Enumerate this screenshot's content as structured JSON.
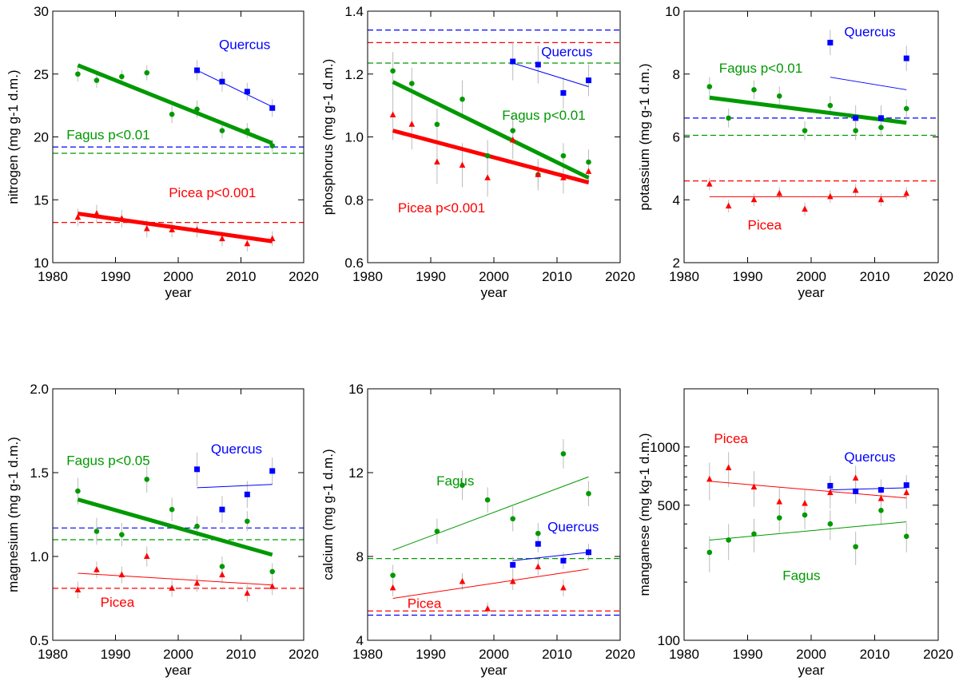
{
  "colors": {
    "picea": "#ff0000",
    "fagus": "#009900",
    "quercus": "#0000ff",
    "errorbar": "#bbbbbb",
    "axis": "#000000"
  },
  "chart_data": [
    {
      "type": "scatter",
      "ylabel": "nitrogen (mg g-1 d.m.)",
      "xlabel": "year",
      "xlim": [
        1980,
        2020
      ],
      "ylim": [
        10,
        30
      ],
      "scale": "linear",
      "xticks": [
        1980,
        1990,
        2000,
        2010,
        2020
      ],
      "yticks": [
        10,
        15,
        20,
        25,
        30
      ],
      "ytick_labels": [
        "10",
        "15",
        "20",
        "25",
        "30"
      ],
      "series": [
        {
          "name": "Fagus",
          "color": "#009900",
          "marker": "circle",
          "x": [
            1984,
            1987,
            1991,
            1995,
            1999,
            2003,
            2007,
            2011,
            2015
          ],
          "y": [
            25.0,
            24.5,
            24.8,
            25.1,
            21.8,
            22.2,
            20.5,
            20.5,
            19.3
          ],
          "err": [
            0.6,
            0.6,
            0.5,
            0.6,
            0.7,
            0.7,
            0.6,
            0.6,
            0.5
          ],
          "trend": [
            25.7,
            19.5
          ],
          "trend_width": 5,
          "mean": 18.7
        },
        {
          "name": "Picea",
          "color": "#ff0000",
          "marker": "triangle",
          "x": [
            1984,
            1987,
            1991,
            1995,
            1999,
            2003,
            2007,
            2011,
            2015
          ],
          "y": [
            13.6,
            13.9,
            13.5,
            12.7,
            12.6,
            12.6,
            11.9,
            11.5,
            11.9
          ],
          "err": [
            0.7,
            0.7,
            0.7,
            0.7,
            0.6,
            0.6,
            0.6,
            0.6,
            0.6
          ],
          "trend": [
            13.9,
            11.7
          ],
          "trend_width": 5,
          "mean": 13.2
        },
        {
          "name": "Quercus",
          "color": "#0000ff",
          "marker": "square",
          "x": [
            2003,
            2007,
            2011,
            2015
          ],
          "y": [
            25.3,
            24.4,
            23.6,
            22.3
          ],
          "err": [
            0.8,
            0.8,
            0.7,
            0.7
          ],
          "trend": [
            25.3,
            22.4
          ],
          "trend_width": 1,
          "mean": 19.2
        }
      ],
      "annotations": [
        {
          "text": "Quercus",
          "color": "#0000ff",
          "x": 2006.5,
          "y": 27.0,
          "size": 17
        },
        {
          "text": "Fagus p<0.01",
          "color": "#009900",
          "x": 1982.2,
          "y": 19.8,
          "size": 17
        },
        {
          "text": "Picea p<0.001",
          "color": "#ff0000",
          "x": 1998.5,
          "y": 15.2,
          "size": 17
        }
      ]
    },
    {
      "type": "scatter",
      "ylabel": "phosphorus (mg g-1 d.m.)",
      "xlabel": "year",
      "xlim": [
        1980,
        2020
      ],
      "ylim": [
        0.6,
        1.4
      ],
      "scale": "linear",
      "xticks": [
        1980,
        1990,
        2000,
        2010,
        2020
      ],
      "yticks": [
        0.6,
        0.8,
        1.0,
        1.2,
        1.4
      ],
      "ytick_labels": [
        "0.6",
        "0.8",
        "1.0",
        "1.2",
        "1.4"
      ],
      "series": [
        {
          "name": "Fagus",
          "color": "#009900",
          "marker": "circle",
          "x": [
            1984,
            1987,
            1991,
            1995,
            1999,
            2003,
            2007,
            2011,
            2015
          ],
          "y": [
            1.21,
            1.17,
            1.04,
            1.12,
            0.94,
            1.02,
            0.88,
            0.94,
            0.92
          ],
          "err": [
            0.06,
            0.05,
            0.05,
            0.06,
            0.05,
            0.05,
            0.04,
            0.04,
            0.04
          ],
          "trend": [
            1.175,
            0.87
          ],
          "trend_width": 5,
          "mean": 1.235
        },
        {
          "name": "Picea",
          "color": "#ff0000",
          "marker": "triangle",
          "x": [
            1984,
            1987,
            1991,
            1995,
            1999,
            2003,
            2007,
            2011,
            2015
          ],
          "y": [
            1.07,
            1.04,
            0.92,
            0.91,
            0.87,
            0.99,
            0.88,
            0.87,
            0.89
          ],
          "err": [
            0.08,
            0.08,
            0.07,
            0.07,
            0.06,
            0.06,
            0.05,
            0.05,
            0.04
          ],
          "trend": [
            1.02,
            0.855
          ],
          "trend_width": 5,
          "mean": 1.3
        },
        {
          "name": "Quercus",
          "color": "#0000ff",
          "marker": "square",
          "x": [
            2003,
            2007,
            2011,
            2015
          ],
          "y": [
            1.24,
            1.23,
            1.14,
            1.18
          ],
          "err": [
            0.06,
            0.06,
            0.05,
            0.05
          ],
          "trend": [
            1.235,
            1.16
          ],
          "trend_width": 1,
          "mean": 1.34
        }
      ],
      "annotations": [
        {
          "text": "Quercus",
          "color": "#0000ff",
          "x": 2007.5,
          "y": 1.256,
          "size": 17
        },
        {
          "text": "Fagus p<0.01",
          "color": "#009900",
          "x": 2001.3,
          "y": 1.055,
          "size": 17
        },
        {
          "text": "Picea p<0.001",
          "color": "#ff0000",
          "x": 1984.8,
          "y": 0.76,
          "size": 17
        }
      ]
    },
    {
      "type": "scatter",
      "ylabel": "potassium (mg g-1 d.m.)",
      "xlabel": "year",
      "xlim": [
        1980,
        2020
      ],
      "ylim": [
        2,
        10
      ],
      "scale": "linear",
      "xticks": [
        1980,
        1990,
        2000,
        2010,
        2020
      ],
      "yticks": [
        2,
        4,
        6,
        8,
        10
      ],
      "ytick_labels": [
        "2",
        "4",
        "6",
        "8",
        "10"
      ],
      "series": [
        {
          "name": "Fagus",
          "color": "#009900",
          "marker": "circle",
          "x": [
            1984,
            1987,
            1991,
            1995,
            1999,
            2003,
            2007,
            2011,
            2015
          ],
          "y": [
            7.6,
            6.6,
            7.5,
            7.3,
            6.2,
            7.0,
            6.2,
            6.3,
            6.9
          ],
          "err": [
            0.3,
            0.3,
            0.3,
            0.3,
            0.3,
            0.3,
            0.3,
            0.3,
            0.3
          ],
          "trend": [
            7.25,
            6.45
          ],
          "trend_width": 5,
          "mean": 6.05
        },
        {
          "name": "Picea",
          "color": "#ff0000",
          "marker": "triangle",
          "x": [
            1984,
            1987,
            1991,
            1995,
            1999,
            2003,
            2007,
            2011,
            2015
          ],
          "y": [
            4.5,
            3.8,
            4.0,
            4.2,
            3.7,
            4.1,
            4.3,
            4.0,
            4.2
          ],
          "err": [
            0.2,
            0.2,
            0.2,
            0.2,
            0.2,
            0.2,
            0.2,
            0.2,
            0.2
          ],
          "trend": [
            4.1,
            4.1
          ],
          "trend_width": 1,
          "mean": 4.6
        },
        {
          "name": "Quercus",
          "color": "#0000ff",
          "marker": "square",
          "x": [
            2003,
            2007,
            2011,
            2015
          ],
          "y": [
            9.0,
            6.6,
            6.6,
            8.5
          ],
          "err": [
            0.4,
            0.4,
            0.4,
            0.4
          ],
          "trend": [
            7.9,
            7.5
          ],
          "trend_width": 1,
          "mean": 6.6
        }
      ],
      "annotations": [
        {
          "text": "Quercus",
          "color": "#0000ff",
          "x": 2005.2,
          "y": 9.2,
          "size": 17
        },
        {
          "text": "Fagus p<0.01",
          "color": "#009900",
          "x": 1985.5,
          "y": 8.05,
          "size": 17
        },
        {
          "text": "Picea",
          "color": "#ff0000",
          "x": 1990.0,
          "y": 3.05,
          "size": 17
        }
      ]
    },
    {
      "type": "scatter",
      "ylabel": "magnesium (mg g-1 d.m.)",
      "xlabel": "year",
      "xlim": [
        1980,
        2020
      ],
      "ylim": [
        0.5,
        2.0
      ],
      "scale": "linear",
      "xticks": [
        1980,
        1990,
        2000,
        2010,
        2020
      ],
      "yticks": [
        0.5,
        1.0,
        1.5,
        2.0
      ],
      "ytick_labels": [
        "0.5",
        "1.0",
        "1.5",
        "2.0"
      ],
      "series": [
        {
          "name": "Fagus",
          "color": "#009900",
          "marker": "circle",
          "x": [
            1984,
            1987,
            1991,
            1995,
            1999,
            2003,
            2007,
            2011,
            2015
          ],
          "y": [
            1.39,
            1.15,
            1.13,
            1.46,
            1.28,
            1.18,
            0.94,
            1.21,
            0.91
          ],
          "err": [
            0.08,
            0.08,
            0.07,
            0.08,
            0.07,
            0.06,
            0.06,
            0.06,
            0.05
          ],
          "trend": [
            1.34,
            1.01
          ],
          "trend_width": 5,
          "mean": 1.1
        },
        {
          "name": "Picea",
          "color": "#ff0000",
          "marker": "triangle",
          "x": [
            1984,
            1987,
            1991,
            1995,
            1999,
            2003,
            2007,
            2011,
            2015
          ],
          "y": [
            0.8,
            0.92,
            0.89,
            1.0,
            0.81,
            0.84,
            0.89,
            0.78,
            0.82
          ],
          "err": [
            0.05,
            0.05,
            0.05,
            0.06,
            0.05,
            0.05,
            0.05,
            0.05,
            0.05
          ],
          "trend": [
            0.9,
            0.83
          ],
          "trend_width": 1,
          "mean": 0.81
        },
        {
          "name": "Quercus",
          "color": "#0000ff",
          "marker": "square",
          "x": [
            2003,
            2007,
            2011,
            2015
          ],
          "y": [
            1.52,
            1.28,
            1.37,
            1.51
          ],
          "err": [
            0.1,
            0.08,
            0.08,
            0.08
          ],
          "trend": [
            1.41,
            1.43
          ],
          "trend_width": 1,
          "mean": 1.17
        }
      ],
      "annotations": [
        {
          "text": "Quercus",
          "color": "#0000ff",
          "x": 2005.2,
          "y": 1.615,
          "size": 17
        },
        {
          "text": "Fagus p<0.05",
          "color": "#009900",
          "x": 1982.2,
          "y": 1.545,
          "size": 17
        },
        {
          "text": "Picea",
          "color": "#ff0000",
          "x": 1987.6,
          "y": 0.7,
          "size": 17
        }
      ]
    },
    {
      "type": "scatter",
      "ylabel": "calcium (mg g-1 d.m.)",
      "xlabel": "year",
      "xlim": [
        1980,
        2020
      ],
      "ylim": [
        4,
        16
      ],
      "scale": "linear",
      "xticks": [
        1980,
        1990,
        2000,
        2010,
        2020
      ],
      "yticks": [
        4,
        8,
        12,
        16
      ],
      "ytick_labels": [
        "4",
        "8",
        "12",
        "16"
      ],
      "series": [
        {
          "name": "Fagus",
          "color": "#009900",
          "marker": "circle",
          "x": [
            1984,
            1991,
            1995,
            1999,
            2003,
            2007,
            2011,
            2015
          ],
          "y": [
            7.1,
            9.2,
            11.4,
            10.7,
            9.8,
            9.1,
            12.9,
            11.0
          ],
          "err": [
            0.5,
            0.6,
            0.7,
            0.6,
            0.6,
            0.5,
            0.7,
            0.6
          ],
          "trend": [
            8.3,
            11.8
          ],
          "trend_width": 1,
          "mean": 7.9
        },
        {
          "name": "Picea",
          "color": "#ff0000",
          "marker": "triangle",
          "x": [
            1984,
            1995,
            1999,
            2003,
            2007,
            2011,
            2015
          ],
          "y": [
            6.5,
            6.8,
            5.5,
            6.8,
            7.5,
            6.5,
            8.2
          ],
          "err": [
            0.4,
            0.4,
            0.3,
            0.4,
            0.4,
            0.4,
            0.4
          ],
          "trend": [
            6.0,
            7.4
          ],
          "trend_width": 1,
          "mean": 5.4
        },
        {
          "name": "Quercus",
          "color": "#0000ff",
          "marker": "square",
          "x": [
            2003,
            2007,
            2011,
            2015
          ],
          "y": [
            7.6,
            8.6,
            7.8,
            8.2
          ],
          "err": [
            0.4,
            0.4,
            0.4,
            0.4
          ],
          "trend": [
            7.8,
            8.2
          ],
          "trend_width": 1,
          "mean": 5.2
        }
      ],
      "annotations": [
        {
          "text": "Fagus",
          "color": "#009900",
          "x": 1990.9,
          "y": 11.4,
          "size": 17
        },
        {
          "text": "Quercus",
          "color": "#0000ff",
          "x": 2008.5,
          "y": 9.2,
          "size": 17
        },
        {
          "text": "Picea",
          "color": "#ff0000",
          "x": 1986.3,
          "y": 5.55,
          "size": 17
        }
      ]
    },
    {
      "type": "scatter",
      "ylabel": "manganese (mg kg-1 d.m.)",
      "xlabel": "year",
      "xlim": [
        1980,
        2020
      ],
      "ylim": [
        100,
        2000
      ],
      "scale": "log",
      "xticks": [
        1980,
        1990,
        2000,
        2010,
        2020
      ],
      "yticks": [
        100,
        500,
        1000
      ],
      "ytick_labels": [
        "100",
        "500",
        "1000"
      ],
      "minor_yticks": [
        200,
        300,
        400,
        600,
        700,
        800,
        900,
        2000
      ],
      "series": [
        {
          "name": "Fagus",
          "color": "#009900",
          "marker": "circle",
          "x": [
            1984,
            1987,
            1991,
            1995,
            1999,
            2003,
            2007,
            2011,
            2015
          ],
          "y": [
            285,
            330,
            355,
            430,
            445,
            400,
            305,
            470,
            345
          ],
          "err": [
            60,
            70,
            70,
            70,
            70,
            70,
            60,
            70,
            60
          ],
          "trend": [
            330,
            410
          ],
          "trend_width": 1
        },
        {
          "name": "Picea",
          "color": "#ff0000",
          "marker": "triangle",
          "x": [
            1984,
            1987,
            1991,
            1995,
            1999,
            2003,
            2007,
            2011,
            2015
          ],
          "y": [
            680,
            780,
            620,
            520,
            510,
            580,
            690,
            540,
            580
          ],
          "err": [
            150,
            160,
            130,
            100,
            90,
            100,
            110,
            100,
            100
          ],
          "trend": [
            665,
            545
          ],
          "trend_width": 1
        },
        {
          "name": "Quercus",
          "color": "#0000ff",
          "marker": "square",
          "x": [
            2003,
            2007,
            2011,
            2015
          ],
          "y": [
            630,
            590,
            600,
            635
          ],
          "err": [
            80,
            80,
            80,
            80
          ],
          "trend": [
            600,
            615
          ],
          "trend_width": 1
        }
      ],
      "annotations": [
        {
          "text": "Picea",
          "color": "#ff0000",
          "x": 1984.7,
          "y": 1050,
          "size": 17
        },
        {
          "text": "Quercus",
          "color": "#0000ff",
          "x": 2005.2,
          "y": 840,
          "size": 17
        },
        {
          "text": "Fagus",
          "color": "#009900",
          "x": 1995.5,
          "y": 205,
          "size": 17
        }
      ]
    }
  ]
}
